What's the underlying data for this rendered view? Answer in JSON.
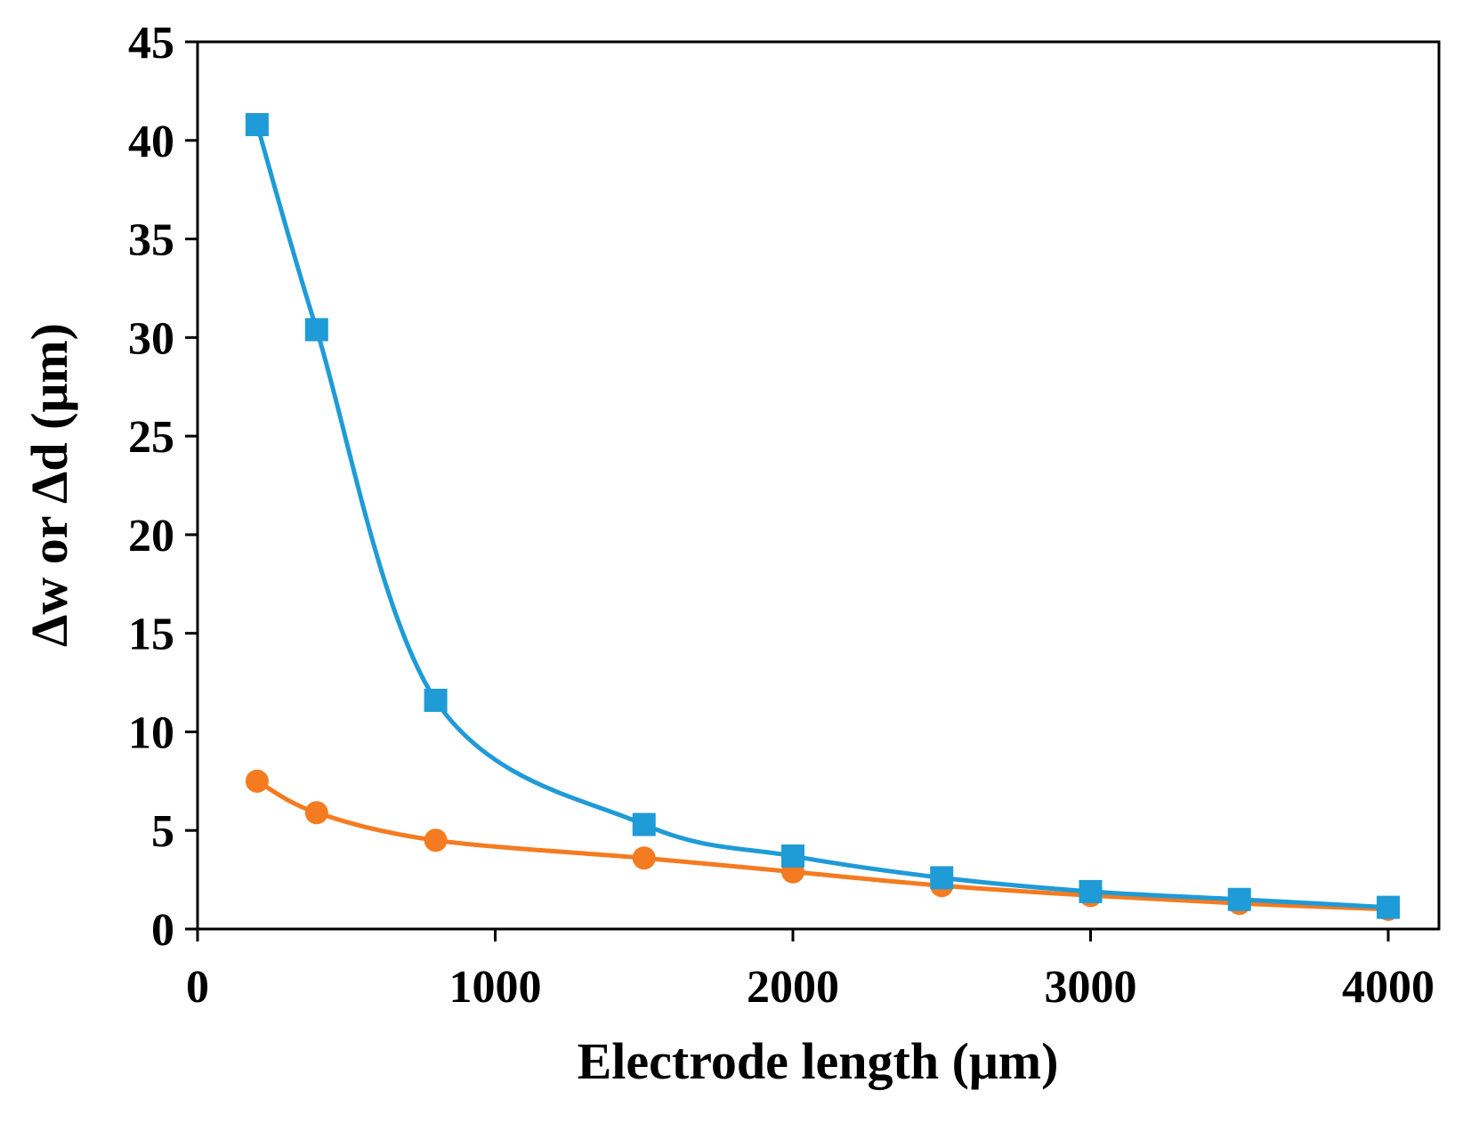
{
  "chart_data": {
    "type": "line",
    "title": "",
    "xlabel": "Electrode length (μm)",
    "ylabel": "Δw or Δd (μm)",
    "xlim": [
      0,
      4100
    ],
    "ylim": [
      0,
      45
    ],
    "xticks": [
      0,
      1000,
      2000,
      3000,
      4000
    ],
    "yticks": [
      0,
      5,
      10,
      15,
      20,
      25,
      30,
      35,
      40,
      45
    ],
    "grid": false,
    "legend": "none",
    "x": [
      200,
      400,
      800,
      1500,
      2000,
      2500,
      3000,
      3500,
      4000
    ],
    "series": [
      {
        "name": "Δw",
        "marker": "square",
        "color": "#1f9bd7",
        "values": [
          40.8,
          30.4,
          11.6,
          5.3,
          3.7,
          2.6,
          1.9,
          1.5,
          1.1
        ]
      },
      {
        "name": "Δd",
        "marker": "circle",
        "color": "#f47b20",
        "values": [
          7.5,
          5.9,
          4.5,
          3.6,
          2.9,
          2.2,
          1.7,
          1.3,
          1.0
        ]
      }
    ]
  }
}
